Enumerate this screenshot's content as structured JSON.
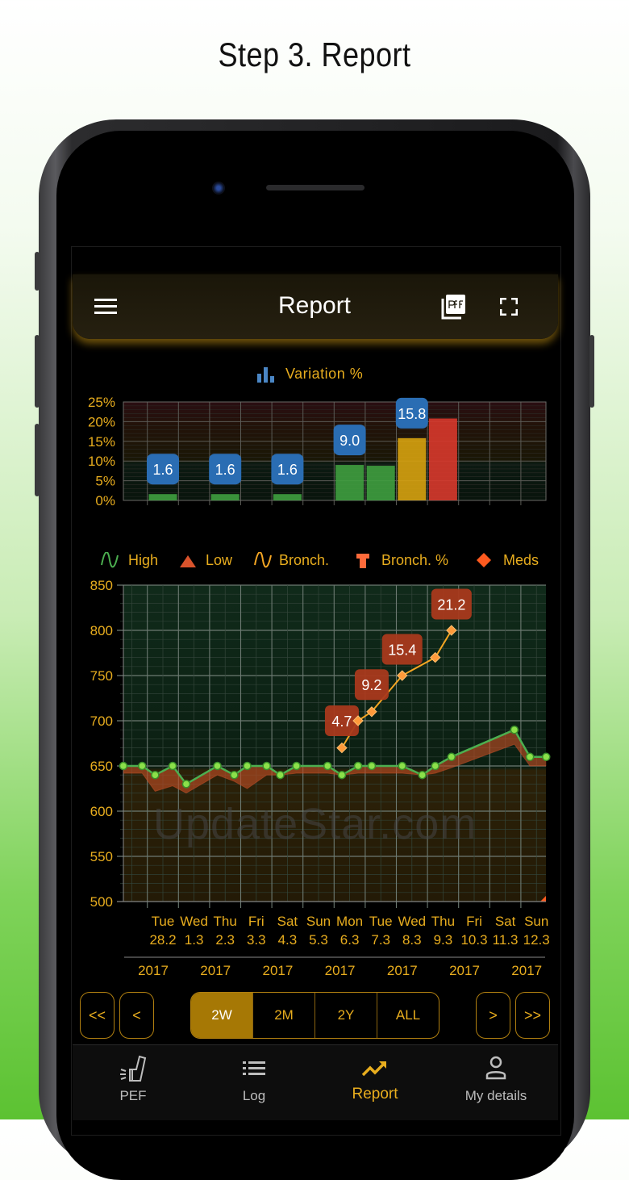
{
  "caption": "Step 3. Report",
  "header": {
    "title": "Report",
    "menu_icon": "hamburger-icon",
    "pdf_icon": "pdf-icon",
    "fullscreen_icon": "fullscreen-icon"
  },
  "watermark": "UpdateStar.com",
  "colors": {
    "accent": "#e8ad1e",
    "active_segment": "#a67805",
    "high": "#4caf50",
    "low": "#c8502a",
    "bronch": "#f5a623",
    "meds": "#ff5a1f",
    "label_blue": "#2a6db3",
    "label_red": "#a9391c"
  },
  "chart_data": [
    {
      "type": "bar",
      "title": "Variation %",
      "title_icon": "bar-chart-icon",
      "ylim": [
        0,
        25
      ],
      "yticks": [
        "0%",
        "5%",
        "10%",
        "15%",
        "20%",
        "25%"
      ],
      "grid": true,
      "bars": [
        {
          "date": "2017-02-28",
          "value": 1.6,
          "label": "1.6",
          "color": "#3f9e3f"
        },
        {
          "date": "2017-03-02",
          "value": 1.6,
          "label": "1.6",
          "color": "#3f9e3f"
        },
        {
          "date": "2017-03-04",
          "value": 1.6,
          "label": "1.6",
          "color": "#3f9e3f"
        },
        {
          "date": "2017-03-06",
          "value": 9.0,
          "label": "9.0",
          "color": "#3f9e3f"
        },
        {
          "date": "2017-03-07",
          "value": 8.8,
          "label": "",
          "color": "#3f9e3f"
        },
        {
          "date": "2017-03-08",
          "value": 15.8,
          "label": "15.8",
          "color": "#d7a20f"
        },
        {
          "date": "2017-03-09",
          "value": 20.8,
          "label": "",
          "color": "#d8392c"
        }
      ]
    },
    {
      "type": "line",
      "ylim": [
        500,
        850
      ],
      "yticks": [
        "500",
        "550",
        "600",
        "650",
        "700",
        "750",
        "800",
        "850"
      ],
      "grid": true,
      "legend_position": "top",
      "legend": [
        {
          "name": "High",
          "icon": "wave-line-icon"
        },
        {
          "name": "Low",
          "icon": "area-triangle-icon"
        },
        {
          "name": "Bronch.",
          "icon": "wave-line-icon"
        },
        {
          "name": "Bronch. %",
          "icon": "bar-marker-icon"
        },
        {
          "name": "Meds",
          "icon": "diamond-icon"
        }
      ],
      "xticks": [
        {
          "day": "Tue",
          "date": "28.2"
        },
        {
          "day": "Wed",
          "date": "1.3"
        },
        {
          "day": "Thu",
          "date": "2.3"
        },
        {
          "day": "Fri",
          "date": "3.3"
        },
        {
          "day": "Sat",
          "date": "4.3"
        },
        {
          "day": "Sun",
          "date": "5.3"
        },
        {
          "day": "Mon",
          "date": "6.3"
        },
        {
          "day": "Tue",
          "date": "7.3"
        },
        {
          "day": "Wed",
          "date": "8.3"
        },
        {
          "day": "Thu",
          "date": "9.3"
        },
        {
          "day": "Fri",
          "date": "10.3"
        },
        {
          "day": "Sat",
          "date": "11.3"
        },
        {
          "day": "Sun",
          "date": "12.3"
        }
      ],
      "year_labels": [
        "2017",
        "2017",
        "2017",
        "2017",
        "2017",
        "2017",
        "2017"
      ],
      "series": [
        {
          "name": "High",
          "points": [
            [
              "2017-02-27T05:30",
              650
            ],
            [
              "2017-02-27T20:00",
              650
            ],
            [
              "2017-02-28T06:00",
              640
            ],
            [
              "2017-02-28T19:30",
              650
            ],
            [
              "2017-03-01T06:00",
              630
            ],
            [
              "2017-03-02T06:00",
              650
            ],
            [
              "2017-03-02T19:00",
              640
            ],
            [
              "2017-03-03T05:00",
              650
            ],
            [
              "2017-03-03T20:00",
              650
            ],
            [
              "2017-03-04T06:30",
              640
            ],
            [
              "2017-03-04T19:00",
              650
            ],
            [
              "2017-03-05T19:00",
              650
            ],
            [
              "2017-03-06T06:00",
              640
            ],
            [
              "2017-03-06T18:30",
              650
            ],
            [
              "2017-03-07T05:00",
              650
            ],
            [
              "2017-03-08T04:30",
              650
            ],
            [
              "2017-03-08T20:00",
              640
            ],
            [
              "2017-03-09T06:00",
              650
            ],
            [
              "2017-03-09T18:30",
              660
            ],
            [
              "2017-03-11T19:00",
              690
            ],
            [
              "2017-03-12T07:00",
              660
            ],
            [
              "2017-03-12T19:30",
              660
            ]
          ]
        },
        {
          "name": "Low",
          "points": [
            [
              "2017-02-27T05:30",
              642
            ],
            [
              "2017-02-27T20:00",
              642
            ],
            [
              "2017-02-28T06:00",
              622
            ],
            [
              "2017-02-28T19:30",
              628
            ],
            [
              "2017-03-01T06:00",
              620
            ],
            [
              "2017-03-02T06:00",
              640
            ],
            [
              "2017-03-02T19:00",
              633
            ],
            [
              "2017-03-03T05:00",
              625
            ],
            [
              "2017-03-03T20:00",
              640
            ],
            [
              "2017-03-04T06:30",
              640
            ],
            [
              "2017-03-04T19:00",
              642
            ],
            [
              "2017-03-05T19:00",
              642
            ],
            [
              "2017-03-06T06:00",
              640
            ],
            [
              "2017-03-06T18:30",
              642
            ],
            [
              "2017-03-07T05:00",
              642
            ],
            [
              "2017-03-08T04:30",
              642
            ],
            [
              "2017-03-08T20:00",
              640
            ],
            [
              "2017-03-09T06:00",
              642
            ],
            [
              "2017-03-09T18:30",
              648
            ],
            [
              "2017-03-11T19:00",
              674
            ],
            [
              "2017-03-12T07:00",
              650
            ],
            [
              "2017-03-12T19:30",
              650
            ]
          ]
        },
        {
          "name": "Bronch.",
          "points": [
            [
              "2017-03-06T06:00",
              670
            ],
            [
              "2017-03-06T18:30",
              700
            ],
            [
              "2017-03-07T05:00",
              710
            ],
            [
              "2017-03-08T04:30",
              750
            ],
            [
              "2017-03-09T06:00",
              770
            ],
            [
              "2017-03-09T18:30",
              800
            ]
          ]
        },
        {
          "name": "Bronch. %",
          "labels": [
            {
              "x": "2017-03-06T06:00",
              "y": 700,
              "text": "4.7"
            },
            {
              "x": "2017-03-07T05:00",
              "y": 740,
              "text": "9.2"
            },
            {
              "x": "2017-03-08T04:30",
              "y": 779,
              "text": "15.4"
            },
            {
              "x": "2017-03-09T18:30",
              "y": 829,
              "text": "21.2"
            }
          ]
        },
        {
          "name": "Meds",
          "points": [
            [
              "2017-03-12T19:30",
              500
            ]
          ]
        }
      ]
    }
  ],
  "range_nav": {
    "first": "<<",
    "prev": "<",
    "next": ">",
    "last": ">>",
    "segments": [
      {
        "label": "2W",
        "active": true
      },
      {
        "label": "2M",
        "active": false
      },
      {
        "label": "2Y",
        "active": false
      },
      {
        "label": "ALL",
        "active": false
      }
    ]
  },
  "tabbar": [
    {
      "label": "PEF",
      "icon": "inhaler-icon",
      "active": false
    },
    {
      "label": "Log",
      "icon": "list-icon",
      "active": false
    },
    {
      "label": "Report",
      "icon": "trending-up-icon",
      "active": true
    },
    {
      "label": "My details",
      "icon": "person-icon",
      "active": false
    }
  ]
}
